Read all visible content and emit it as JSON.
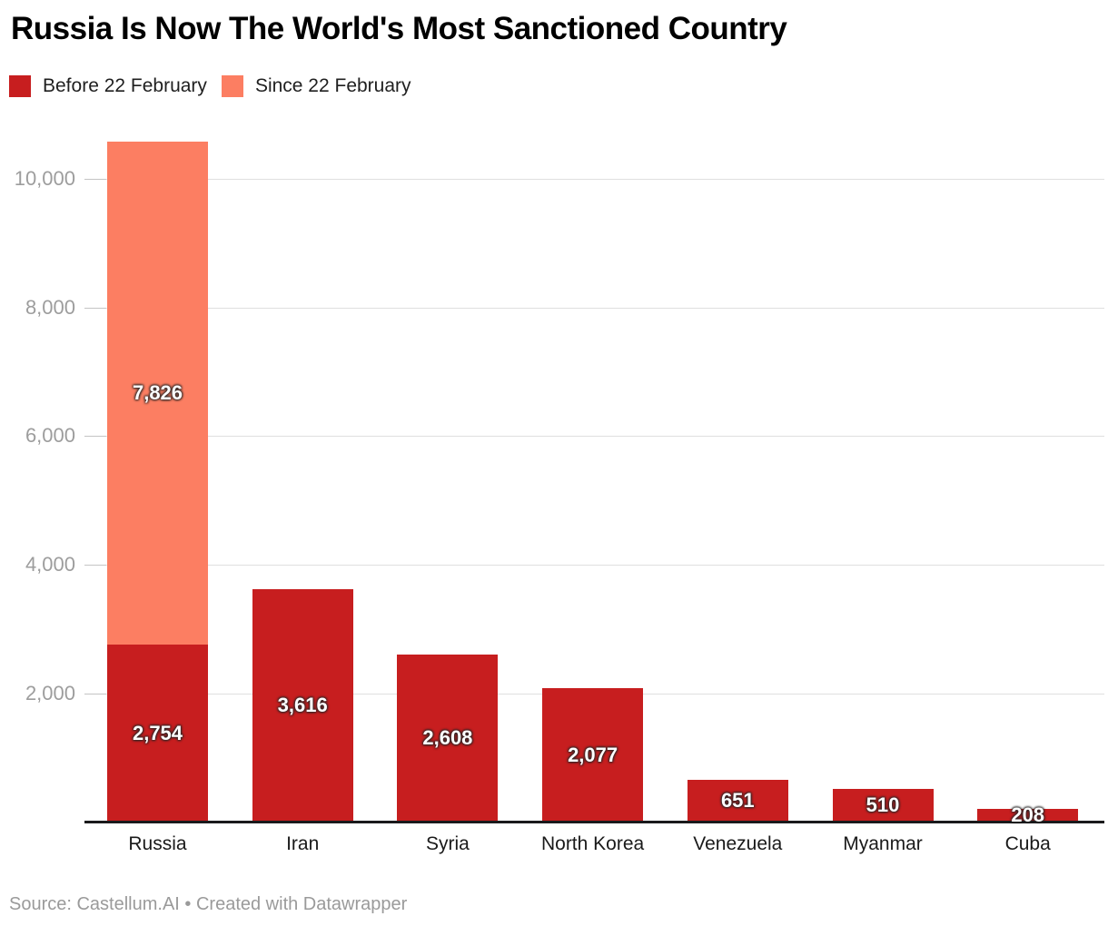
{
  "title": "Russia Is Now The World's Most Sanctioned Country",
  "legend": [
    {
      "label": "Before 22 February",
      "color": "#c71e1f"
    },
    {
      "label": "Since 22 February",
      "color": "#fc7e62"
    }
  ],
  "source": "Source: Castellum.AI • Created with Datawrapper",
  "chart_data": {
    "type": "bar",
    "stacked": true,
    "title": "Russia Is Now The World's Most Sanctioned Country",
    "xlabel": "",
    "ylabel": "",
    "categories": [
      "Russia",
      "Iran",
      "Syria",
      "North Korea",
      "Venezuela",
      "Myanmar",
      "Cuba"
    ],
    "series": [
      {
        "name": "Before 22 February",
        "color": "#c71e1f",
        "values": [
          2754,
          3616,
          2608,
          2077,
          651,
          510,
          208
        ]
      },
      {
        "name": "Since 22 February",
        "color": "#fc7e62",
        "values": [
          7826,
          0,
          0,
          0,
          0,
          0,
          0
        ]
      }
    ],
    "value_labels": {
      "Russia": [
        "2,754",
        "7,826"
      ],
      "Iran": [
        "3,616"
      ],
      "Syria": [
        "2,608"
      ],
      "North Korea": [
        "2,077"
      ],
      "Venezuela": [
        "651"
      ],
      "Myanmar": [
        "510"
      ],
      "Cuba": [
        "208"
      ]
    },
    "ylim": [
      0,
      10580
    ],
    "yticks": [
      2000,
      4000,
      6000,
      8000,
      10000
    ],
    "ytick_labels": [
      "2,000",
      "4,000",
      "6,000",
      "8,000",
      "10,000"
    ],
    "grid": "horizontal",
    "legend_position": "top-left",
    "gridline_color": "#dfdfdf",
    "axis_line_color": "#1a1a1c",
    "tick_text_color": "#9d9d9d"
  }
}
